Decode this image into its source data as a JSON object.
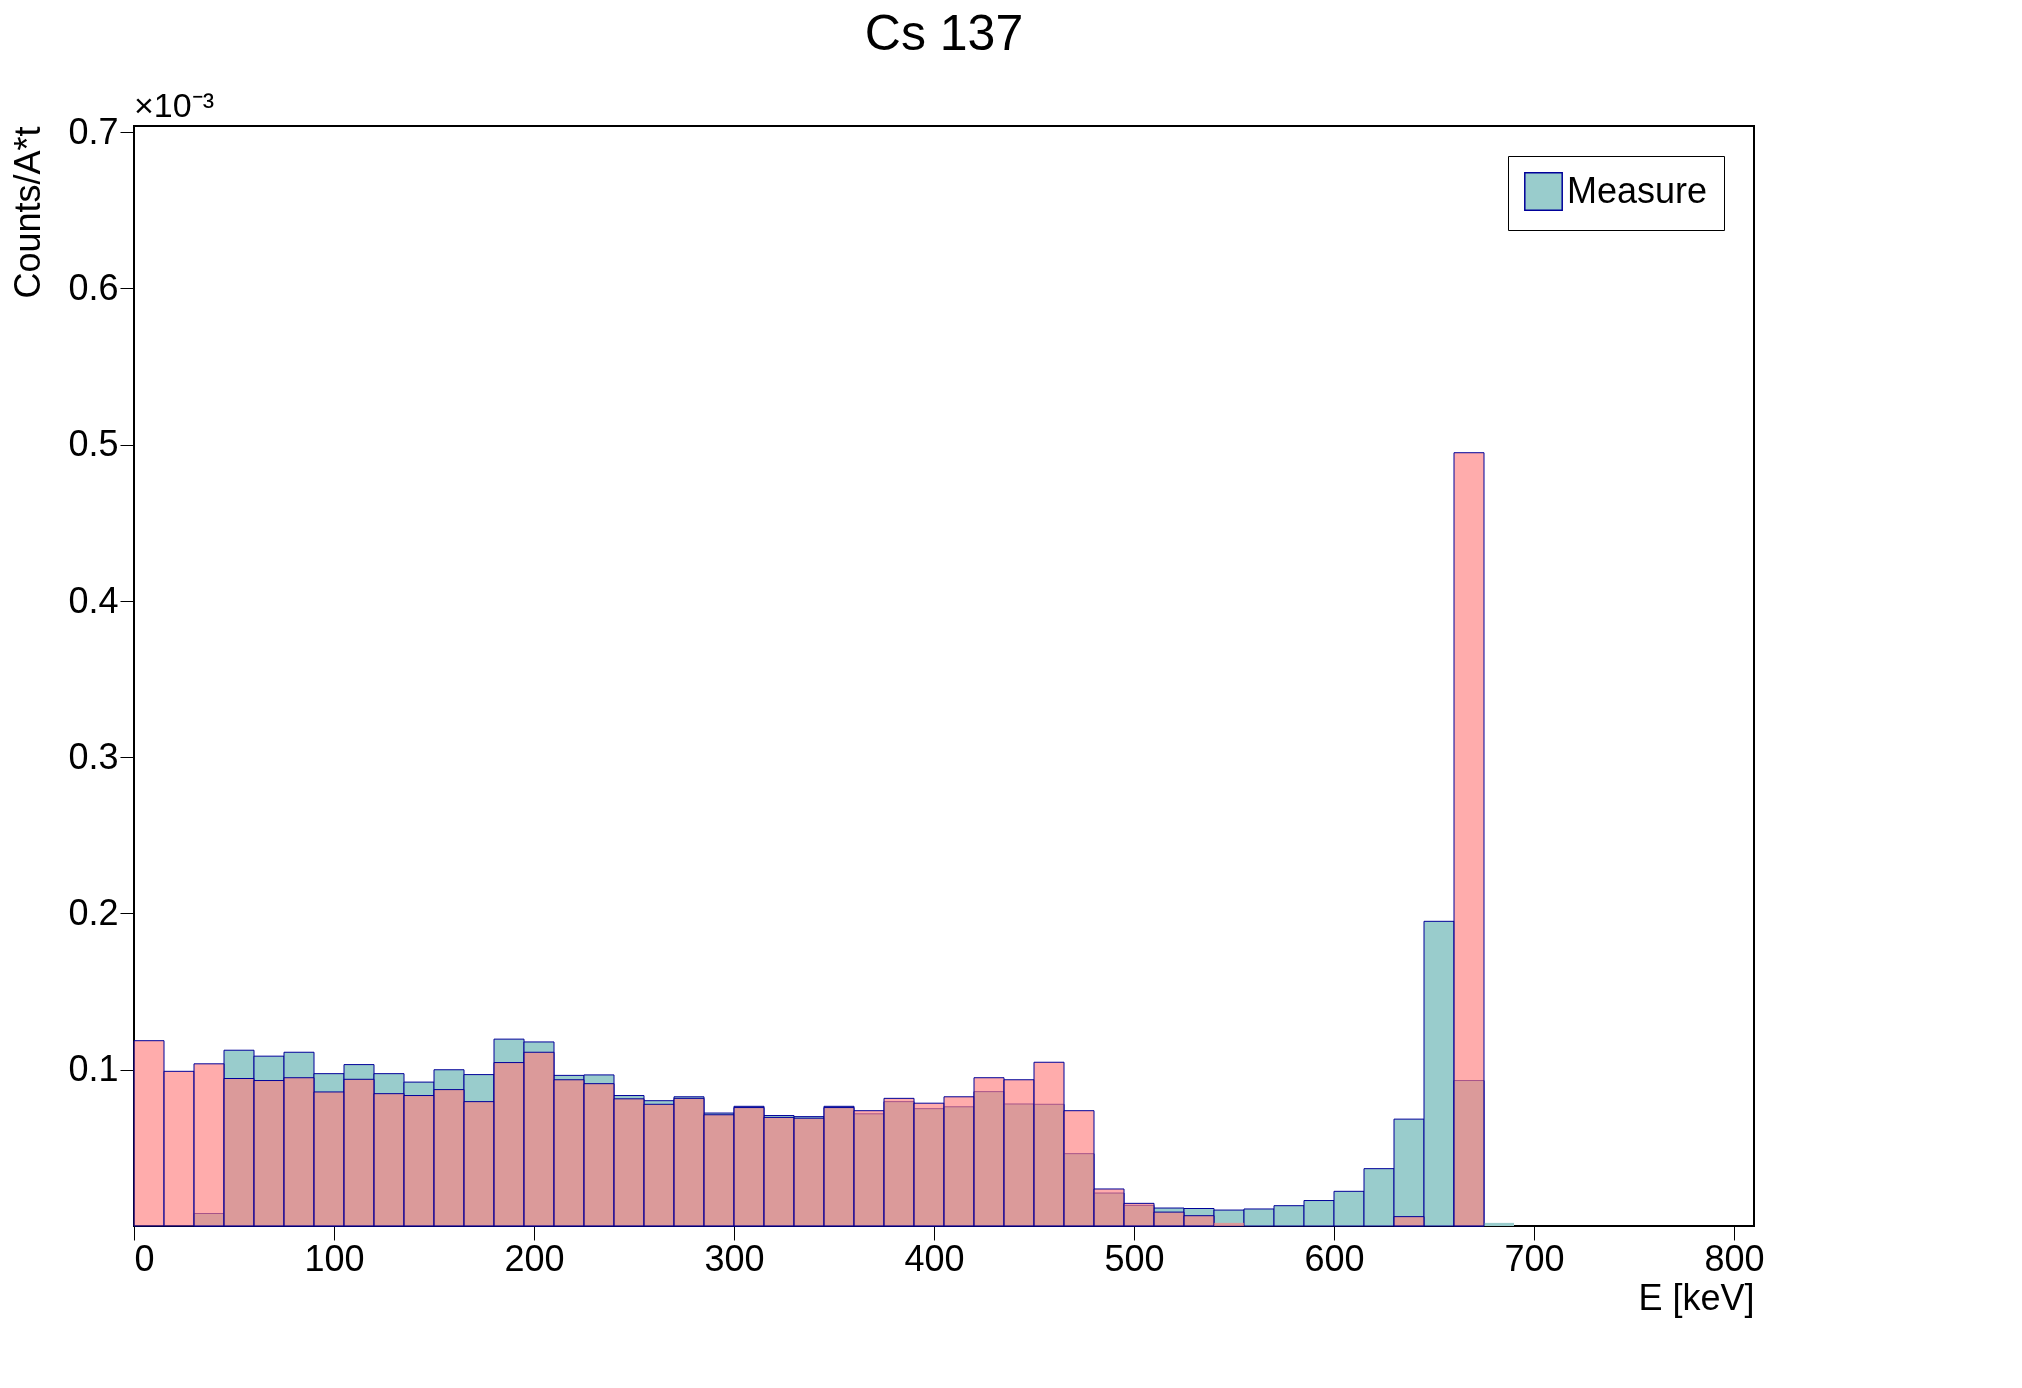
{
  "chart_data": {
    "type": "histogram",
    "title": "Cs 137",
    "xlabel": "E [keV]",
    "ylabel": "Counts/A*t",
    "annotations": [
      "×10⁻³"
    ],
    "bins": [
      0,
      15,
      30,
      45,
      60,
      75,
      90,
      105,
      120,
      135,
      150,
      165,
      180,
      195,
      210,
      225,
      240,
      255,
      270,
      285,
      300,
      315,
      330,
      345,
      360,
      375,
      390,
      405,
      420,
      435,
      450,
      465,
      480,
      495,
      510,
      525,
      540,
      555,
      570,
      585,
      600,
      615,
      630,
      645,
      660,
      675,
      690,
      705,
      720,
      735,
      750,
      765,
      780,
      795,
      810
    ],
    "series": [
      {
        "name": "Measure",
        "color": "#99cccc",
        "values": [
          0,
          0,
          0.008,
          0.1125,
          0.1087,
          0.1112,
          0.0975,
          0.1033,
          0.0975,
          0.0921,
          0.1,
          0.0969,
          0.1196,
          0.1178,
          0.0964,
          0.0967,
          0.0835,
          0.0802,
          0.0827,
          0.0723,
          0.0766,
          0.0707,
          0.07,
          0.0766,
          0.0718,
          0.0796,
          0.0751,
          0.0763,
          0.086,
          0.0781,
          0.0779,
          0.0463,
          0.0211,
          0.0132,
          0.0115,
          0.0112,
          0.0102,
          0.0109,
          0.013,
          0.0163,
          0.0222,
          0.0367,
          0.0684,
          0.195,
          0.0931,
          0.002,
          0,
          0,
          0,
          0,
          0,
          0,
          0,
          0
        ]
      },
      {
        "color": "#ff8080",
        "values": [
          0.1186,
          0.099,
          0.1038,
          0.0944,
          0.0931,
          0.0949,
          0.0858,
          0.0939,
          0.0847,
          0.0835,
          0.0873,
          0.0796,
          0.1046,
          0.1112,
          0.0936,
          0.0911,
          0.0814,
          0.0779,
          0.0817,
          0.0712,
          0.0758,
          0.0695,
          0.069,
          0.0758,
          0.0738,
          0.0817,
          0.0786,
          0.0827,
          0.0949,
          0.0936,
          0.1048,
          0.0738,
          0.0237,
          0.0145,
          0.0089,
          0.0066,
          0.002,
          0,
          0,
          0,
          0,
          0,
          0.006,
          0,
          0.4949,
          0,
          0,
          0,
          0,
          0,
          0,
          0,
          0,
          0
        ]
      }
    ],
    "xlim": [
      0,
      810
    ],
    "xticks": [
      0,
      100,
      200,
      300,
      400,
      500,
      600,
      700,
      800
    ],
    "ylim": [
      0,
      0.704
    ],
    "yticks": [
      0.1,
      0.2,
      0.3,
      0.4,
      0.5,
      0.6,
      0.7
    ],
    "grid": false,
    "legend": "top right"
  }
}
